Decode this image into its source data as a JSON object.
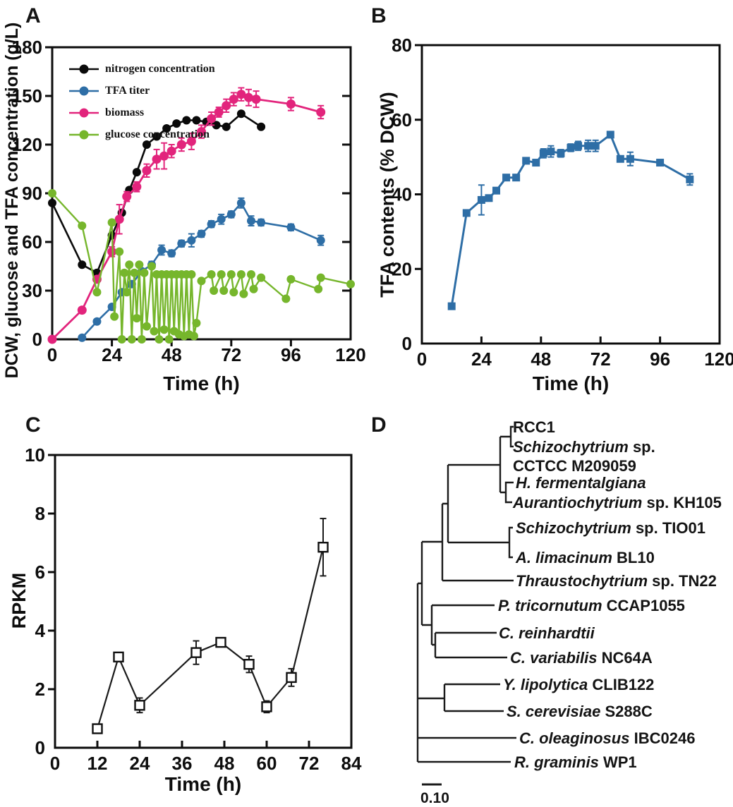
{
  "figure": {
    "panels": [
      "A",
      "B",
      "C",
      "D"
    ],
    "background": "#ffffff"
  },
  "chart_data": [
    {
      "id": "A",
      "type": "line",
      "title": "",
      "xlabel": "Time (h)",
      "ylabel": "DCW, glucose and TFA concentration (g/L)",
      "xlim": [
        0,
        120
      ],
      "ylim": [
        0,
        180
      ],
      "xticks": [
        0,
        24,
        48,
        72,
        96,
        120
      ],
      "yticks": [
        0,
        30,
        60,
        90,
        120,
        150,
        180
      ],
      "grid": false,
      "legend_position": "top-left",
      "series": [
        {
          "name": "nitrogen concentration",
          "color": "#0a0a0a",
          "marker": "circle",
          "lw": 2.6,
          "ms": 6,
          "points": [
            [
              0,
              84
            ],
            [
              12,
              46
            ],
            [
              18,
              41
            ],
            [
              24,
              64
            ],
            [
              28,
              78
            ],
            [
              31,
              92
            ],
            [
              34,
              103
            ],
            [
              38,
              120
            ],
            [
              42,
              125
            ],
            [
              46,
              130
            ],
            [
              50,
              133
            ],
            [
              54,
              135
            ],
            [
              58,
              135
            ],
            [
              62,
              134
            ],
            [
              66,
              132
            ],
            [
              70,
              131
            ],
            [
              76,
              139
            ],
            [
              84,
              131
            ]
          ]
        },
        {
          "name": "TFA titer",
          "color": "#2e6ea6",
          "marker": "circle",
          "lw": 2.6,
          "ms": 6,
          "points": [
            [
              12,
              1
            ],
            [
              18,
              11
            ],
            [
              24,
              20
            ],
            [
              28,
              29
            ],
            [
              32,
              34
            ],
            [
              36,
              42
            ],
            [
              40,
              46
            ],
            [
              44,
              55
            ],
            [
              48,
              53
            ],
            [
              52,
              59
            ],
            [
              56,
              61
            ],
            [
              60,
              65
            ],
            [
              64,
              71
            ],
            [
              68,
              74
            ],
            [
              72,
              77
            ],
            [
              76,
              84
            ],
            [
              80,
              73
            ],
            [
              84,
              72
            ],
            [
              96,
              69
            ],
            [
              108,
              61
            ]
          ],
          "err": [
            0,
            0,
            0,
            0,
            0,
            0,
            2,
            3,
            2,
            2,
            4,
            2,
            2,
            3,
            2,
            3,
            3,
            2,
            2,
            3
          ]
        },
        {
          "name": "biomass",
          "color": "#e2247c",
          "marker": "circle",
          "lw": 2.8,
          "ms": 6.5,
          "points": [
            [
              0,
              0
            ],
            [
              12,
              18
            ],
            [
              18,
              37
            ],
            [
              24,
              54
            ],
            [
              27,
              74
            ],
            [
              30,
              88
            ],
            [
              34,
              94
            ],
            [
              38,
              104
            ],
            [
              42,
              111
            ],
            [
              45,
              113
            ],
            [
              48,
              116
            ],
            [
              52,
              120
            ],
            [
              56,
              122
            ],
            [
              60,
              128
            ],
            [
              64,
              136
            ],
            [
              67,
              140
            ],
            [
              70,
              144
            ],
            [
              73,
              148
            ],
            [
              76,
              151
            ],
            [
              79,
              149
            ],
            [
              82,
              148
            ],
            [
              96,
              145
            ],
            [
              108,
              140
            ]
          ],
          "err": [
            0,
            0,
            0,
            3,
            9,
            3,
            3,
            4,
            6,
            8,
            4,
            4,
            5,
            4,
            4,
            3,
            4,
            4,
            4,
            5,
            5,
            4,
            4
          ]
        },
        {
          "name": "glucose concentration",
          "color": "#76b62c",
          "marker": "circle",
          "lw": 2.4,
          "ms": 6,
          "points": [
            [
              0,
              90
            ],
            [
              12,
              70
            ],
            [
              18,
              29
            ],
            [
              24,
              72
            ],
            [
              25,
              14
            ],
            [
              27,
              54
            ],
            [
              28,
              0
            ],
            [
              29,
              41
            ],
            [
              30,
              29
            ],
            [
              31,
              46
            ],
            [
              32,
              0
            ],
            [
              33,
              41
            ],
            [
              34,
              13
            ],
            [
              35,
              46
            ],
            [
              36,
              0
            ],
            [
              37,
              41
            ],
            [
              38,
              8
            ],
            [
              40,
              45
            ],
            [
              41,
              5
            ],
            [
              42,
              40
            ],
            [
              43,
              0
            ],
            [
              44,
              40
            ],
            [
              45,
              6
            ],
            [
              46,
              40
            ],
            [
              47,
              0
            ],
            [
              48,
              40
            ],
            [
              49,
              5
            ],
            [
              50,
              40
            ],
            [
              51,
              3
            ],
            [
              52,
              40
            ],
            [
              53,
              2
            ],
            [
              54,
              40
            ],
            [
              55,
              3
            ],
            [
              56,
              40
            ],
            [
              57,
              2
            ],
            [
              58,
              10
            ],
            [
              60,
              36
            ],
            [
              64,
              40
            ],
            [
              65,
              30
            ],
            [
              68,
              40
            ],
            [
              69,
              30
            ],
            [
              72,
              40
            ],
            [
              73,
              29
            ],
            [
              76,
              40
            ],
            [
              77,
              28
            ],
            [
              80,
              40
            ],
            [
              81,
              31
            ],
            [
              84,
              38
            ],
            [
              94,
              25
            ],
            [
              96,
              37
            ],
            [
              107,
              31
            ],
            [
              108,
              38
            ],
            [
              120,
              34
            ]
          ]
        }
      ]
    },
    {
      "id": "B",
      "type": "line",
      "title": "",
      "xlabel": "Time (h)",
      "ylabel": "TFA contents (% DCW)",
      "xlim": [
        0,
        120
      ],
      "ylim": [
        0,
        80
      ],
      "xticks": [
        0,
        24,
        48,
        72,
        96,
        120
      ],
      "yticks": [
        0,
        20,
        40,
        60,
        80
      ],
      "grid": false,
      "series": [
        {
          "name": "TFA content",
          "color": "#2e6ea6",
          "marker": "square",
          "lw": 3,
          "points": [
            [
              12,
              10
            ],
            [
              18,
              35
            ],
            [
              24,
              38.5
            ],
            [
              27,
              39
            ],
            [
              30,
              41
            ],
            [
              34,
              44.5
            ],
            [
              38,
              44.5
            ],
            [
              42,
              49
            ],
            [
              46,
              48.5
            ],
            [
              49,
              51
            ],
            [
              52,
              51.5
            ],
            [
              56,
              51
            ],
            [
              60,
              52.5
            ],
            [
              63,
              53
            ],
            [
              67,
              53
            ],
            [
              70,
              53
            ],
            [
              76,
              56
            ],
            [
              80,
              49.5
            ],
            [
              84,
              49.5
            ],
            [
              96,
              48.5
            ],
            [
              108,
              44
            ]
          ],
          "err": [
            0.8,
            0.8,
            4,
            0.8,
            0.8,
            0.8,
            0.8,
            0.8,
            0.8,
            1.2,
            1.5,
            1,
            1,
            1.2,
            1.5,
            1.5,
            0.8,
            0.8,
            1.8,
            0.8,
            1.5
          ]
        }
      ]
    },
    {
      "id": "C",
      "type": "line",
      "title": "",
      "xlabel": "Time (h)",
      "ylabel": "RPKM",
      "xlim": [
        0,
        84
      ],
      "ylim": [
        0,
        10
      ],
      "xticks": [
        0,
        12,
        24,
        36,
        48,
        60,
        72,
        84
      ],
      "yticks": [
        0,
        2,
        4,
        6,
        8,
        10
      ],
      "grid": false,
      "series": [
        {
          "name": "RPKM",
          "color": "#1a1a1a",
          "marker": "open-square",
          "lw": 2.2,
          "points": [
            [
              12,
              0.65
            ],
            [
              18,
              3.1
            ],
            [
              24,
              1.45
            ],
            [
              40,
              3.25
            ],
            [
              47,
              3.6
            ],
            [
              55,
              2.85
            ],
            [
              60,
              1.4
            ],
            [
              67,
              2.4
            ],
            [
              76,
              6.85
            ]
          ],
          "err": [
            0.15,
            0.15,
            0.25,
            0.4,
            0.12,
            0.28,
            0.2,
            0.3,
            0.98
          ]
        }
      ]
    },
    {
      "id": "D",
      "type": "tree",
      "scale_label": "0.10",
      "taxa": [
        {
          "italic": "",
          "roman": "RCC1"
        },
        {
          "italic": "Schizochytrium",
          "roman": "sp."
        },
        {
          "italic": "",
          "roman": "CCTCC M209059"
        },
        {
          "italic": "H. fermentalgiana",
          "roman": ""
        },
        {
          "italic": "Aurantiochytrium",
          "roman": "sp. KH105"
        },
        {
          "italic": "Schizochytrium",
          "roman": "sp. TIO01"
        },
        {
          "italic": "A. limacinum",
          "roman": "BL10"
        },
        {
          "italic": "Thraustochytrium",
          "roman": "sp. TN22"
        },
        {
          "italic": "P. tricornutum",
          "roman": "CCAP1055"
        },
        {
          "italic": "C. reinhardtii",
          "roman": ""
        },
        {
          "italic": "C. variabilis",
          "roman": "NC64A"
        },
        {
          "italic": "Y. lipolytica",
          "roman": "CLIB122"
        },
        {
          "italic": "S. cerevisiae",
          "roman": "S288C"
        },
        {
          "italic": "C. oleaginosus",
          "roman": "IBC0246"
        },
        {
          "italic": "R. graminis",
          "roman": "WP1"
        }
      ]
    }
  ]
}
